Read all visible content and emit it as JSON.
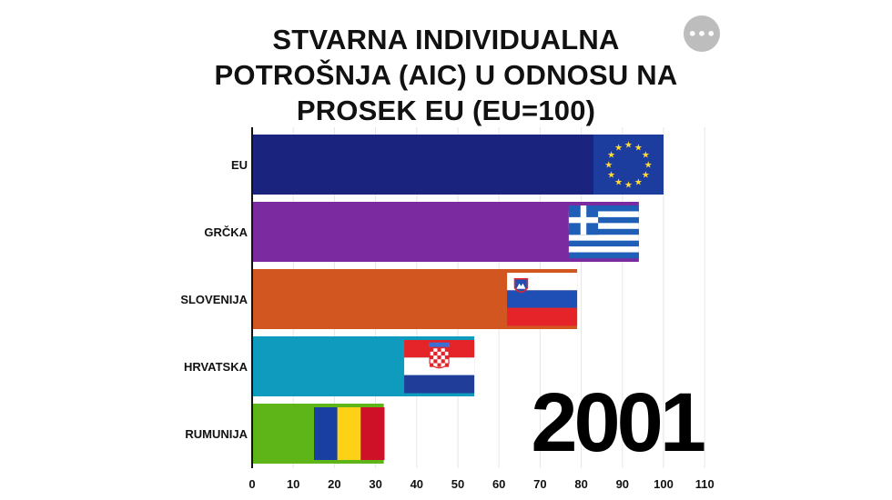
{
  "header": {
    "title_lines": [
      "STVARNA INDIVIDUALNA",
      "POTROŠNJA (AIC) U ODNOSU NA",
      "PROSEK EU (EU=100)"
    ],
    "more_button": "•••"
  },
  "chart_data": {
    "type": "bar",
    "orientation": "horizontal",
    "categories": [
      "EU",
      "GRČKA",
      "SLOVENIJA",
      "HRVATSKA",
      "RUMUNIJA"
    ],
    "values": [
      100,
      94,
      79,
      54,
      32
    ],
    "bar_colors": [
      "#1a237e",
      "#7b2aa0",
      "#d2561f",
      "#0e9bbd",
      "#5eb518"
    ],
    "flags": [
      "eu-flag-icon",
      "greece-flag-icon",
      "slovenia-flag-icon",
      "croatia-flag-icon",
      "romania-flag-icon"
    ],
    "xlim": [
      0,
      110
    ],
    "xticks": [
      0,
      10,
      20,
      30,
      40,
      50,
      60,
      70,
      80,
      90,
      100,
      110
    ],
    "grid": true,
    "year": "2001",
    "title": "STVARNA INDIVIDUALNA POTROŠNJA (AIC) U ODNOSU NA PROSEK EU (EU=100)",
    "xlabel": "",
    "ylabel": ""
  }
}
